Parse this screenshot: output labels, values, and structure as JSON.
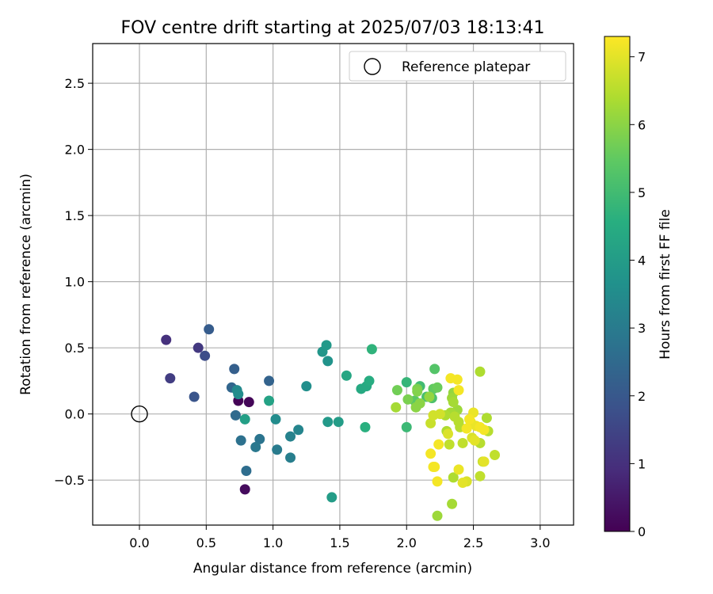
{
  "chart_data": {
    "type": "scatter",
    "title": "FOV centre drift starting at 2025/07/03 18:13:41",
    "xlabel": "Angular distance from reference (arcmin)",
    "ylabel": "Rotation from reference (arcmin)",
    "xlim": [
      -0.35,
      3.25
    ],
    "ylim": [
      -0.84,
      2.8
    ],
    "xticks": [
      0.0,
      0.5,
      1.0,
      1.5,
      2.0,
      2.5,
      3.0
    ],
    "xtick_labels": [
      "0.0",
      "0.5",
      "1.0",
      "1.5",
      "2.0",
      "2.5",
      "3.0"
    ],
    "yticks": [
      -0.5,
      0.0,
      0.5,
      1.0,
      1.5,
      2.0,
      2.5
    ],
    "ytick_labels": [
      "−0.5",
      "0.0",
      "0.5",
      "1.0",
      "1.5",
      "2.0",
      "2.5"
    ],
    "grid": true,
    "legend": {
      "position": "upper right",
      "entries": [
        "Reference platepar"
      ]
    },
    "reference_point": {
      "x": 0.0,
      "y": 0.0,
      "marker": "open-circle",
      "label": "Reference platepar"
    },
    "colorbar": {
      "label": "Hours from first FF file",
      "colormap": "viridis",
      "range": [
        0,
        7.3
      ],
      "ticks": [
        0,
        1,
        2,
        3,
        4,
        5,
        6,
        7
      ],
      "tick_labels": [
        "0",
        "1",
        "2",
        "3",
        "4",
        "5",
        "6",
        "7"
      ]
    },
    "points": [
      {
        "x": 0.74,
        "y": 0.1,
        "c": 0.05
      },
      {
        "x": 0.82,
        "y": 0.09,
        "c": 0.1
      },
      {
        "x": 0.79,
        "y": -0.57,
        "c": 0.2
      },
      {
        "x": 0.2,
        "y": 0.56,
        "c": 1.0
      },
      {
        "x": 0.44,
        "y": 0.5,
        "c": 1.2
      },
      {
        "x": 0.23,
        "y": 0.27,
        "c": 1.3
      },
      {
        "x": 0.49,
        "y": 0.44,
        "c": 1.7
      },
      {
        "x": 0.41,
        "y": 0.13,
        "c": 1.9
      },
      {
        "x": 0.52,
        "y": 0.64,
        "c": 2.1
      },
      {
        "x": 0.71,
        "y": 0.34,
        "c": 2.2
      },
      {
        "x": 0.97,
        "y": 0.25,
        "c": 2.3
      },
      {
        "x": 0.69,
        "y": 0.2,
        "c": 2.4
      },
      {
        "x": 0.72,
        "y": -0.01,
        "c": 2.5
      },
      {
        "x": 0.8,
        "y": -0.43,
        "c": 2.6
      },
      {
        "x": 0.76,
        "y": -0.2,
        "c": 2.7
      },
      {
        "x": 0.9,
        "y": -0.19,
        "c": 2.8
      },
      {
        "x": 0.87,
        "y": -0.25,
        "c": 2.9
      },
      {
        "x": 1.03,
        "y": -0.27,
        "c": 3.0
      },
      {
        "x": 1.13,
        "y": -0.33,
        "c": 3.1
      },
      {
        "x": 1.13,
        "y": -0.17,
        "c": 3.2
      },
      {
        "x": 1.19,
        "y": -0.12,
        "c": 3.3
      },
      {
        "x": 0.73,
        "y": 0.18,
        "c": 3.4
      },
      {
        "x": 0.74,
        "y": 0.15,
        "c": 3.5
      },
      {
        "x": 1.02,
        "y": -0.04,
        "c": 3.5
      },
      {
        "x": 1.25,
        "y": 0.21,
        "c": 3.6
      },
      {
        "x": 1.41,
        "y": 0.4,
        "c": 3.7
      },
      {
        "x": 1.37,
        "y": 0.47,
        "c": 3.8
      },
      {
        "x": 1.4,
        "y": 0.52,
        "c": 3.9
      },
      {
        "x": 1.41,
        "y": -0.06,
        "c": 3.9
      },
      {
        "x": 1.49,
        "y": -0.06,
        "c": 4.0
      },
      {
        "x": 1.44,
        "y": -0.63,
        "c": 4.0
      },
      {
        "x": 0.79,
        "y": -0.04,
        "c": 4.1
      },
      {
        "x": 0.97,
        "y": 0.1,
        "c": 4.2
      },
      {
        "x": 1.55,
        "y": 0.29,
        "c": 4.3
      },
      {
        "x": 1.66,
        "y": 0.19,
        "c": 4.4
      },
      {
        "x": 1.7,
        "y": 0.21,
        "c": 4.4
      },
      {
        "x": 1.72,
        "y": 0.25,
        "c": 4.5
      },
      {
        "x": 1.69,
        "y": -0.1,
        "c": 4.6
      },
      {
        "x": 1.74,
        "y": 0.49,
        "c": 4.7
      },
      {
        "x": 2.0,
        "y": 0.24,
        "c": 4.8
      },
      {
        "x": 2.0,
        "y": -0.1,
        "c": 4.9
      },
      {
        "x": 2.1,
        "y": 0.21,
        "c": 5.0
      },
      {
        "x": 2.15,
        "y": 0.13,
        "c": 5.1
      },
      {
        "x": 2.19,
        "y": 0.12,
        "c": 5.2
      },
      {
        "x": 2.21,
        "y": 0.34,
        "c": 5.3
      },
      {
        "x": 2.06,
        "y": 0.1,
        "c": 5.4
      },
      {
        "x": 2.2,
        "y": 0.19,
        "c": 5.5
      },
      {
        "x": 2.23,
        "y": 0.2,
        "c": 5.6
      },
      {
        "x": 1.93,
        "y": 0.18,
        "c": 5.7
      },
      {
        "x": 2.08,
        "y": 0.19,
        "c": 5.8
      },
      {
        "x": 2.01,
        "y": 0.11,
        "c": 5.8
      },
      {
        "x": 2.08,
        "y": 0.17,
        "c": 5.9
      },
      {
        "x": 2.1,
        "y": 0.08,
        "c": 6.0
      },
      {
        "x": 2.07,
        "y": 0.05,
        "c": 6.0
      },
      {
        "x": 2.17,
        "y": 0.13,
        "c": 6.1
      },
      {
        "x": 2.35,
        "y": 0.16,
        "c": 6.1
      },
      {
        "x": 2.34,
        "y": 0.12,
        "c": 6.2
      },
      {
        "x": 2.38,
        "y": 0.03,
        "c": 6.2
      },
      {
        "x": 2.35,
        "y": 0.09,
        "c": 6.3
      },
      {
        "x": 2.33,
        "y": 0.01,
        "c": 6.3
      },
      {
        "x": 1.92,
        "y": 0.05,
        "c": 6.3
      },
      {
        "x": 2.3,
        "y": -0.13,
        "c": 6.4
      },
      {
        "x": 2.29,
        "y": -0.01,
        "c": 6.4
      },
      {
        "x": 2.36,
        "y": -0.02,
        "c": 6.5
      },
      {
        "x": 2.4,
        "y": -0.1,
        "c": 6.5
      },
      {
        "x": 2.42,
        "y": -0.22,
        "c": 6.6
      },
      {
        "x": 2.32,
        "y": -0.23,
        "c": 6.6
      },
      {
        "x": 2.39,
        "y": -0.06,
        "c": 6.5
      },
      {
        "x": 2.35,
        "y": -0.48,
        "c": 6.4
      },
      {
        "x": 2.34,
        "y": -0.68,
        "c": 6.3
      },
      {
        "x": 2.23,
        "y": -0.77,
        "c": 6.2
      },
      {
        "x": 2.55,
        "y": 0.32,
        "c": 6.4
      },
      {
        "x": 2.6,
        "y": -0.03,
        "c": 6.4
      },
      {
        "x": 2.55,
        "y": -0.22,
        "c": 6.5
      },
      {
        "x": 2.61,
        "y": -0.13,
        "c": 6.5
      },
      {
        "x": 2.66,
        "y": -0.31,
        "c": 6.6
      },
      {
        "x": 2.55,
        "y": -0.47,
        "c": 6.6
      },
      {
        "x": 2.57,
        "y": -0.36,
        "c": 6.7
      },
      {
        "x": 2.18,
        "y": -0.07,
        "c": 6.7
      },
      {
        "x": 2.2,
        "y": -0.01,
        "c": 6.8
      },
      {
        "x": 2.25,
        "y": 0.0,
        "c": 6.8
      },
      {
        "x": 2.31,
        "y": -0.15,
        "c": 6.9
      },
      {
        "x": 2.45,
        "y": -0.51,
        "c": 6.9
      },
      {
        "x": 2.49,
        "y": -0.18,
        "c": 6.9
      },
      {
        "x": 2.51,
        "y": -0.2,
        "c": 7.0
      },
      {
        "x": 2.58,
        "y": -0.36,
        "c": 7.0
      },
      {
        "x": 2.42,
        "y": -0.52,
        "c": 7.0
      },
      {
        "x": 2.39,
        "y": -0.42,
        "c": 7.1
      },
      {
        "x": 2.5,
        "y": 0.01,
        "c": 7.1
      },
      {
        "x": 2.48,
        "y": -0.06,
        "c": 7.1
      },
      {
        "x": 2.52,
        "y": -0.09,
        "c": 7.1
      },
      {
        "x": 2.55,
        "y": -0.1,
        "c": 7.2
      },
      {
        "x": 2.58,
        "y": -0.12,
        "c": 7.2
      },
      {
        "x": 2.38,
        "y": 0.26,
        "c": 7.2
      },
      {
        "x": 2.33,
        "y": 0.27,
        "c": 7.2
      },
      {
        "x": 2.39,
        "y": 0.18,
        "c": 7.2
      },
      {
        "x": 2.24,
        "y": -0.23,
        "c": 7.2
      },
      {
        "x": 2.18,
        "y": -0.3,
        "c": 7.2
      },
      {
        "x": 2.2,
        "y": -0.4,
        "c": 7.2
      },
      {
        "x": 2.21,
        "y": -0.4,
        "c": 7.2
      },
      {
        "x": 2.23,
        "y": -0.51,
        "c": 7.2
      },
      {
        "x": 2.45,
        "y": -0.11,
        "c": 7.2
      },
      {
        "x": 2.47,
        "y": -0.04,
        "c": 7.2
      }
    ]
  }
}
